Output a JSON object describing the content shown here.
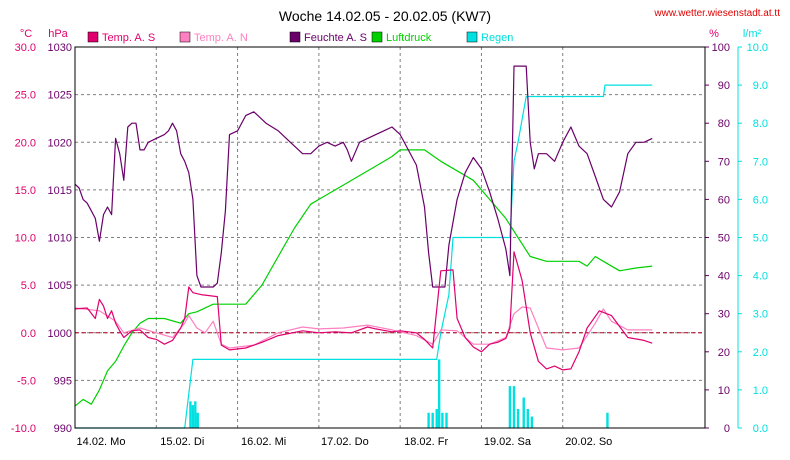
{
  "header": {
    "title": "Woche 14.02.05 - 20.02.05 (KW7)",
    "url": "www.wetter.wiesenstadt.at.tt"
  },
  "colors": {
    "temp_s": "#e0006e",
    "temp_n": "#ff80c0",
    "feuchte": "#6a006a",
    "luftdruck": "#00d000",
    "regen": "#00e0e0",
    "grid": "#808080",
    "zero": "#b00020"
  },
  "chart_data": {
    "type": "line",
    "title": "Woche 14.02.05 - 20.02.05 (KW7)",
    "legend_placement": "top",
    "grid": true,
    "x": {
      "range_days": [
        0,
        7.75
      ],
      "ticks": [
        {
          "day": 0,
          "label": "14.02.  Mo"
        },
        {
          "day": 1,
          "label": "15.02.  Di"
        },
        {
          "day": 2,
          "label": "16.02.  Mi"
        },
        {
          "day": 3,
          "label": "17.02.  Do"
        },
        {
          "day": 4,
          "label": "18.02.  Fr"
        },
        {
          "day": 5,
          "label": "19.02.  Sa"
        },
        {
          "day": 6,
          "label": "20.02.  So"
        }
      ]
    },
    "axes": {
      "temp": {
        "unit": "°C",
        "range": [
          -10,
          30
        ],
        "ticks": [
          "30.0",
          "25.0",
          "20.0",
          "15.0",
          "10.0",
          "5.0",
          "0.0",
          "-5.0",
          "-10.0"
        ]
      },
      "pressure": {
        "unit": "hPa",
        "range": [
          990,
          1030
        ],
        "ticks": [
          "1030",
          "1025",
          "1020",
          "1015",
          "1010",
          "1005",
          "1000",
          "995",
          "990"
        ]
      },
      "humidity": {
        "unit": "%",
        "range": [
          0,
          100
        ],
        "ticks": [
          "100",
          "90",
          "80",
          "70",
          "60",
          "50",
          "40",
          "30",
          "20",
          "10",
          "0"
        ]
      },
      "rain": {
        "unit": "l/m²",
        "range": [
          0,
          10
        ],
        "ticks": [
          "10.0",
          "9.0",
          "8.0",
          "7.0",
          "6.0",
          "5.0",
          "4.0",
          "3.0",
          "2.0",
          "1.0",
          "0.0"
        ]
      }
    },
    "series": [
      {
        "key": "temp_s",
        "name": "Temp. A. S",
        "axis": "temp",
        "points": [
          [
            0,
            2.5
          ],
          [
            0.15,
            2.6
          ],
          [
            0.25,
            1.5
          ],
          [
            0.3,
            3.5
          ],
          [
            0.35,
            2.8
          ],
          [
            0.4,
            1.5
          ],
          [
            0.45,
            2.3
          ],
          [
            0.5,
            1.0
          ],
          [
            0.55,
            0.2
          ],
          [
            0.6,
            -0.5
          ],
          [
            0.7,
            0.2
          ],
          [
            0.8,
            0.3
          ],
          [
            0.9,
            -0.5
          ],
          [
            1.0,
            -0.7
          ],
          [
            1.1,
            -1.2
          ],
          [
            1.2,
            -0.8
          ],
          [
            1.3,
            0.5
          ],
          [
            1.35,
            1.5
          ],
          [
            1.4,
            4.8
          ],
          [
            1.45,
            4.2
          ],
          [
            1.55,
            4.0
          ],
          [
            1.75,
            3.8
          ],
          [
            1.8,
            -1.3
          ],
          [
            1.9,
            -1.8
          ],
          [
            2.1,
            -1.6
          ],
          [
            2.3,
            -1.0
          ],
          [
            2.5,
            -0.3
          ],
          [
            2.8,
            0.2
          ],
          [
            3.0,
            0.0
          ],
          [
            3.2,
            0.1
          ],
          [
            3.4,
            0.0
          ],
          [
            3.6,
            0.6
          ],
          [
            3.7,
            0.4
          ],
          [
            3.9,
            0.1
          ],
          [
            4.0,
            0.2
          ],
          [
            4.2,
            0.0
          ],
          [
            4.3,
            -0.7
          ],
          [
            4.4,
            -1.6
          ],
          [
            4.5,
            6.5
          ],
          [
            4.65,
            6.6
          ],
          [
            4.7,
            1.5
          ],
          [
            4.8,
            -0.5
          ],
          [
            4.9,
            -1.5
          ],
          [
            5.0,
            -2.0
          ],
          [
            5.1,
            -1.2
          ],
          [
            5.2,
            -1.0
          ],
          [
            5.3,
            -0.6
          ],
          [
            5.35,
            0.5
          ],
          [
            5.4,
            8.5
          ],
          [
            5.5,
            5.5
          ],
          [
            5.6,
            0.0
          ],
          [
            5.7,
            -3.0
          ],
          [
            5.8,
            -3.8
          ],
          [
            5.9,
            -3.5
          ],
          [
            6.0,
            -3.9
          ],
          [
            6.1,
            -3.8
          ],
          [
            6.2,
            -2.0
          ],
          [
            6.3,
            0.5
          ],
          [
            6.45,
            2.3
          ],
          [
            6.6,
            1.8
          ],
          [
            6.8,
            -0.5
          ],
          [
            7.0,
            -0.8
          ],
          [
            7.1,
            -1.1
          ]
        ]
      },
      {
        "key": "temp_n",
        "name": "Temp. A. N",
        "axis": "temp",
        "points": [
          [
            0,
            2.6
          ],
          [
            0.3,
            2.3
          ],
          [
            0.5,
            1.2
          ],
          [
            0.6,
            0.0
          ],
          [
            0.8,
            0.5
          ],
          [
            1.0,
            0.0
          ],
          [
            1.2,
            -0.5
          ],
          [
            1.35,
            1.0
          ],
          [
            1.4,
            1.8
          ],
          [
            1.5,
            0.5
          ],
          [
            1.6,
            0.0
          ],
          [
            1.7,
            1.2
          ],
          [
            1.8,
            -1.2
          ],
          [
            1.9,
            -1.6
          ],
          [
            2.2,
            -1.3
          ],
          [
            2.5,
            0.0
          ],
          [
            2.8,
            0.6
          ],
          [
            3.0,
            0.4
          ],
          [
            3.3,
            0.5
          ],
          [
            3.6,
            0.8
          ],
          [
            3.9,
            0.3
          ],
          [
            4.2,
            -0.3
          ],
          [
            4.4,
            -1.2
          ],
          [
            4.5,
            0.3
          ],
          [
            4.7,
            0.2
          ],
          [
            4.9,
            -1.2
          ],
          [
            5.1,
            -1.2
          ],
          [
            5.3,
            -0.5
          ],
          [
            5.4,
            2.0
          ],
          [
            5.5,
            2.7
          ],
          [
            5.6,
            2.6
          ],
          [
            5.7,
            0.5
          ],
          [
            5.8,
            -1.6
          ],
          [
            6.0,
            -1.8
          ],
          [
            6.2,
            -1.6
          ],
          [
            6.4,
            1.0
          ],
          [
            6.5,
            2.5
          ],
          [
            6.6,
            1.2
          ],
          [
            6.8,
            0.3
          ],
          [
            7.1,
            0.3
          ]
        ]
      },
      {
        "key": "feuchte",
        "name": "Feuchte A. S",
        "axis": "humidity",
        "points": [
          [
            0,
            64
          ],
          [
            0.05,
            63
          ],
          [
            0.1,
            60
          ],
          [
            0.15,
            59
          ],
          [
            0.2,
            57
          ],
          [
            0.25,
            55
          ],
          [
            0.3,
            49
          ],
          [
            0.35,
            56
          ],
          [
            0.4,
            58
          ],
          [
            0.45,
            56
          ],
          [
            0.5,
            76
          ],
          [
            0.55,
            72
          ],
          [
            0.6,
            65
          ],
          [
            0.65,
            79
          ],
          [
            0.7,
            80
          ],
          [
            0.75,
            80
          ],
          [
            0.8,
            73
          ],
          [
            0.85,
            73
          ],
          [
            0.9,
            75
          ],
          [
            1.0,
            76
          ],
          [
            1.1,
            77
          ],
          [
            1.15,
            78
          ],
          [
            1.2,
            80
          ],
          [
            1.25,
            78
          ],
          [
            1.3,
            72
          ],
          [
            1.35,
            70
          ],
          [
            1.4,
            67
          ],
          [
            1.45,
            60
          ],
          [
            1.5,
            40
          ],
          [
            1.55,
            37
          ],
          [
            1.7,
            37
          ],
          [
            1.75,
            38
          ],
          [
            1.8,
            46
          ],
          [
            1.85,
            57
          ],
          [
            1.9,
            77
          ],
          [
            2.0,
            78
          ],
          [
            2.1,
            82
          ],
          [
            2.2,
            83
          ],
          [
            2.25,
            82
          ],
          [
            2.35,
            80
          ],
          [
            2.5,
            78
          ],
          [
            2.65,
            75
          ],
          [
            2.8,
            72
          ],
          [
            2.9,
            72
          ],
          [
            3.0,
            74
          ],
          [
            3.1,
            75
          ],
          [
            3.2,
            74
          ],
          [
            3.3,
            75
          ],
          [
            3.35,
            73
          ],
          [
            3.4,
            70
          ],
          [
            3.5,
            75
          ],
          [
            3.6,
            76
          ],
          [
            3.7,
            77
          ],
          [
            3.8,
            78
          ],
          [
            3.9,
            79
          ],
          [
            4.0,
            77
          ],
          [
            4.1,
            73
          ],
          [
            4.2,
            69
          ],
          [
            4.3,
            58
          ],
          [
            4.35,
            46
          ],
          [
            4.4,
            37
          ],
          [
            4.55,
            37
          ],
          [
            4.6,
            48
          ],
          [
            4.7,
            60
          ],
          [
            4.8,
            67
          ],
          [
            4.9,
            71
          ],
          [
            5.0,
            68
          ],
          [
            5.1,
            62
          ],
          [
            5.2,
            55
          ],
          [
            5.3,
            47
          ],
          [
            5.35,
            40
          ],
          [
            5.4,
            95
          ],
          [
            5.55,
            95
          ],
          [
            5.6,
            75
          ],
          [
            5.65,
            68
          ],
          [
            5.7,
            72
          ],
          [
            5.8,
            72
          ],
          [
            5.9,
            70
          ],
          [
            6.0,
            75
          ],
          [
            6.1,
            79
          ],
          [
            6.2,
            74
          ],
          [
            6.3,
            72
          ],
          [
            6.4,
            66
          ],
          [
            6.5,
            60
          ],
          [
            6.6,
            58
          ],
          [
            6.7,
            62
          ],
          [
            6.8,
            72
          ],
          [
            6.9,
            75
          ],
          [
            7.0,
            75
          ],
          [
            7.1,
            76
          ]
        ]
      },
      {
        "key": "luftdruck",
        "name": "Luftdruck",
        "axis": "pressure",
        "points": [
          [
            0,
            992.3
          ],
          [
            0.1,
            993
          ],
          [
            0.2,
            992.5
          ],
          [
            0.3,
            994
          ],
          [
            0.4,
            996
          ],
          [
            0.5,
            997
          ],
          [
            0.6,
            998.6
          ],
          [
            0.7,
            1000
          ],
          [
            0.8,
            1001
          ],
          [
            0.9,
            1001.5
          ],
          [
            1.1,
            1001.5
          ],
          [
            1.3,
            1001
          ],
          [
            1.4,
            1002
          ],
          [
            1.5,
            1002.2
          ],
          [
            1.7,
            1003
          ],
          [
            2.0,
            1003
          ],
          [
            2.1,
            1003
          ],
          [
            2.3,
            1005
          ],
          [
            2.5,
            1008
          ],
          [
            2.7,
            1011
          ],
          [
            2.9,
            1013.5
          ],
          [
            3.1,
            1014.5
          ],
          [
            3.3,
            1015.5
          ],
          [
            3.5,
            1016.5
          ],
          [
            3.7,
            1017.5
          ],
          [
            3.9,
            1018.5
          ],
          [
            4.0,
            1019.2
          ],
          [
            4.3,
            1019.2
          ],
          [
            4.5,
            1018
          ],
          [
            4.7,
            1017
          ],
          [
            4.9,
            1016
          ],
          [
            5.1,
            1014
          ],
          [
            5.3,
            1012
          ],
          [
            5.45,
            1010
          ],
          [
            5.6,
            1008
          ],
          [
            5.8,
            1007.5
          ],
          [
            6.0,
            1007.5
          ],
          [
            6.2,
            1007.5
          ],
          [
            6.3,
            1007
          ],
          [
            6.4,
            1008
          ],
          [
            6.5,
            1007.5
          ],
          [
            6.7,
            1006.5
          ],
          [
            6.9,
            1006.8
          ],
          [
            7.1,
            1007
          ]
        ]
      },
      {
        "key": "regen",
        "name": "Regen",
        "axis": "rain",
        "points": [
          [
            0,
            0
          ],
          [
            1.35,
            0
          ],
          [
            1.45,
            1.8
          ],
          [
            4.45,
            1.8
          ],
          [
            4.5,
            2.5
          ],
          [
            4.6,
            3.5
          ],
          [
            4.65,
            5.0
          ],
          [
            5.35,
            5.0
          ],
          [
            5.4,
            7.0
          ],
          [
            5.45,
            7.5
          ],
          [
            5.55,
            8.7
          ],
          [
            6.5,
            8.7
          ],
          [
            6.52,
            9.0
          ],
          [
            7.1,
            9.0
          ]
        ]
      }
    ],
    "rain_bars": {
      "name": "Regen",
      "axis": "rain",
      "bars": [
        [
          1.42,
          0.7
        ],
        [
          1.45,
          0.6
        ],
        [
          1.48,
          0.7
        ],
        [
          1.51,
          0.4
        ],
        [
          4.35,
          0.4
        ],
        [
          4.4,
          0.4
        ],
        [
          4.45,
          0.5
        ],
        [
          4.48,
          1.8
        ],
        [
          4.52,
          0.4
        ],
        [
          4.57,
          0.4
        ],
        [
          5.35,
          1.1
        ],
        [
          5.4,
          1.1
        ],
        [
          5.45,
          0.5
        ],
        [
          5.52,
          0.8
        ],
        [
          5.57,
          0.5
        ],
        [
          5.62,
          0.3
        ],
        [
          6.55,
          0.4
        ]
      ]
    }
  }
}
